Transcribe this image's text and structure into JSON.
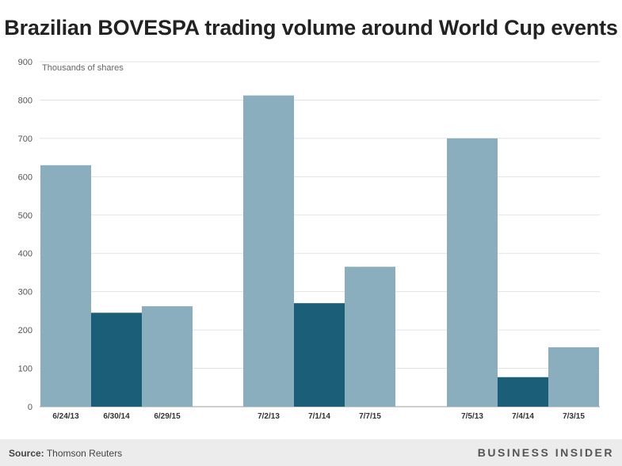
{
  "title": "Brazilian BOVESPA trading volume around World Cup events",
  "footer": {
    "source_label": "Source:",
    "source_text": "Thomson Reuters",
    "brand": "BUSINESS INSIDER"
  },
  "colors": {
    "light_bar": "#8aaebe",
    "dark_bar": "#1b5e78",
    "grid": "#e3e3e3",
    "axis_text": "#555555"
  },
  "chart_data": {
    "type": "bar",
    "title": "Brazilian BOVESPA trading volume around World Cup events",
    "unit_label": "Thousands of shares",
    "ylim": [
      0,
      900
    ],
    "yticks": [
      0,
      100,
      200,
      300,
      400,
      500,
      600,
      700,
      800,
      900
    ],
    "grid": true,
    "groups": [
      {
        "bars": [
          {
            "label": "6/24/13",
            "value": 630,
            "highlight": false
          },
          {
            "label": "6/30/14",
            "value": 245,
            "highlight": true
          },
          {
            "label": "6/29/15",
            "value": 262,
            "highlight": false
          }
        ]
      },
      {
        "bars": [
          {
            "label": "7/2/13",
            "value": 812,
            "highlight": false
          },
          {
            "label": "7/1/14",
            "value": 270,
            "highlight": true
          },
          {
            "label": "7/7/15",
            "value": 365,
            "highlight": false
          }
        ]
      },
      {
        "bars": [
          {
            "label": "7/5/13",
            "value": 700,
            "highlight": false
          },
          {
            "label": "7/4/14",
            "value": 77,
            "highlight": true
          },
          {
            "label": "7/3/15",
            "value": 155,
            "highlight": false
          }
        ]
      }
    ]
  }
}
